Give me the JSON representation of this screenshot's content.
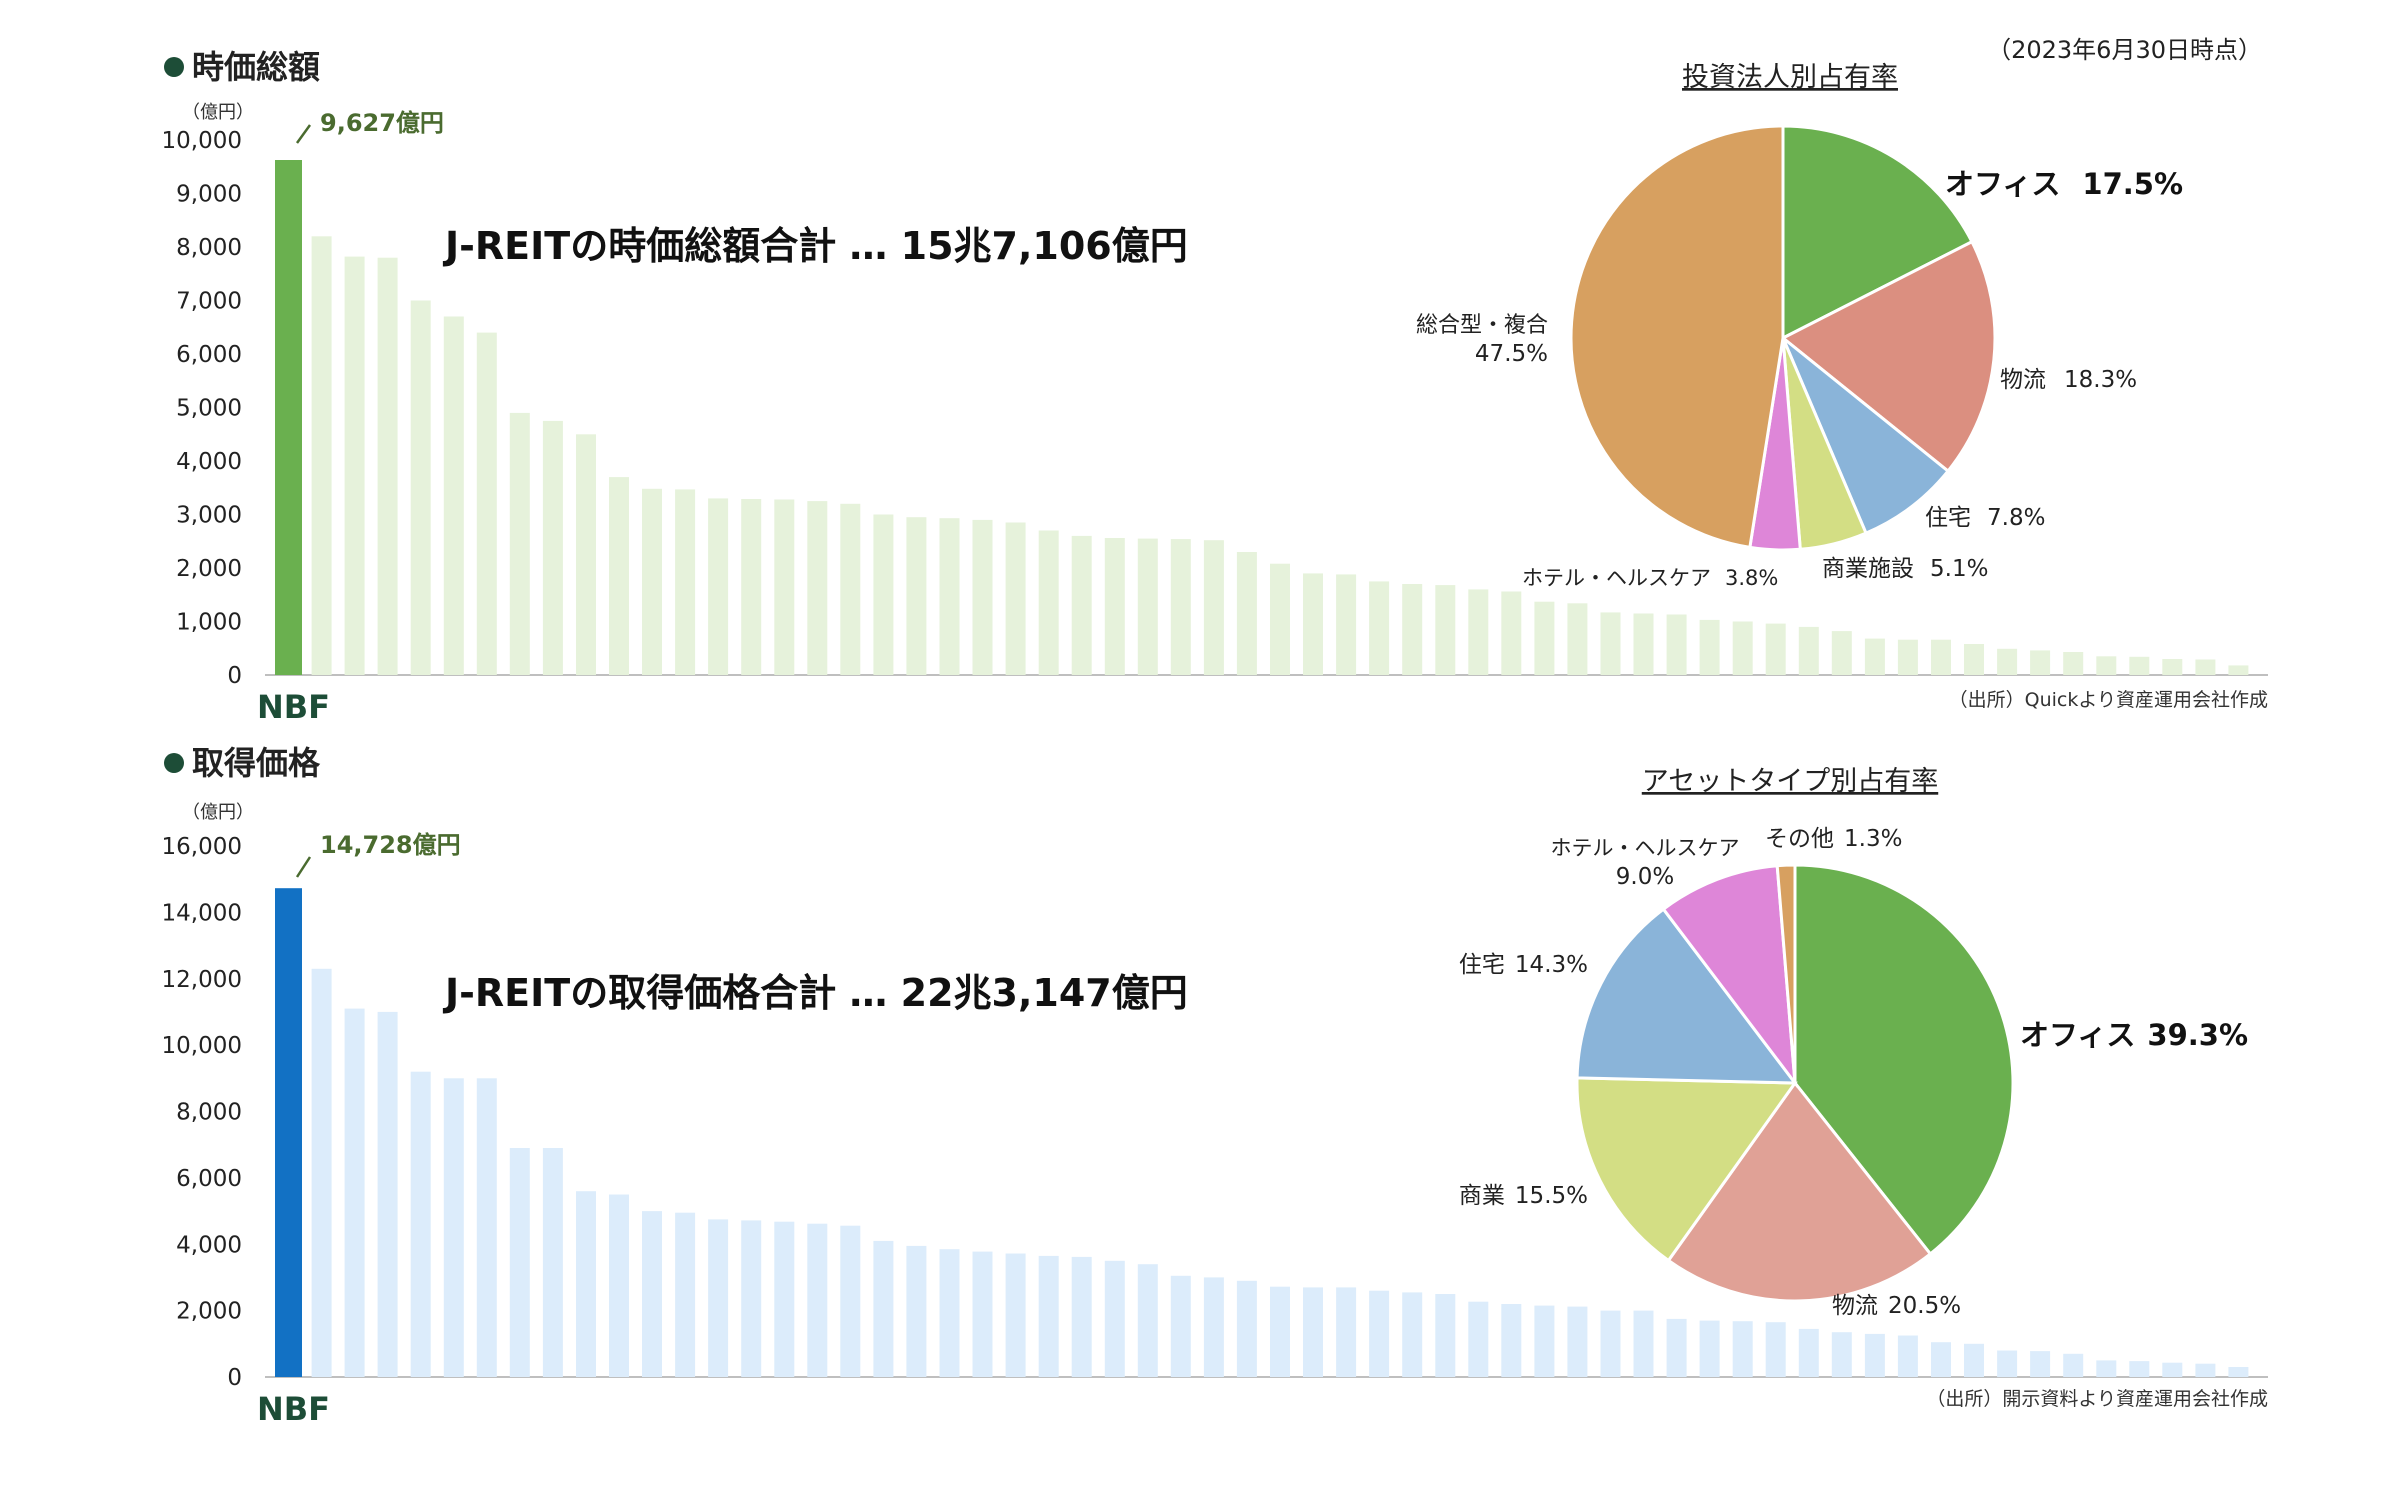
{
  "as_of": "（2023年6月30日時点）",
  "colors": {
    "section_dot": "#1d4d37",
    "label_green": "#4a6b2f",
    "nbf_bar_1": "#6ab04f",
    "other_bar_1": "#e6f2db",
    "nbf_bar_2": "#1271c4",
    "other_bar_2": "#dcecfb",
    "axis": "#bfbfbf"
  },
  "chart_data": [
    {
      "type": "bar",
      "title": "時価総額",
      "unit": "（億円）",
      "category_label": "NBF",
      "highlight_label": "9,627億円",
      "headline": "J-REITの時価総額合計 … 15兆7,106億円",
      "source": "（出所）Quickより資産運用会社作成",
      "ylim": [
        0,
        10000
      ],
      "yticks": [
        "0",
        "1,000",
        "2,000",
        "3,000",
        "4,000",
        "5,000",
        "6,000",
        "7,000",
        "8,000",
        "9,000",
        "10,000"
      ],
      "values": [
        9627,
        8200,
        7820,
        7800,
        7000,
        6700,
        6400,
        4900,
        4750,
        4500,
        3700,
        3480,
        3470,
        3300,
        3290,
        3280,
        3250,
        3200,
        3000,
        2950,
        2930,
        2900,
        2850,
        2700,
        2600,
        2560,
        2550,
        2540,
        2520,
        2300,
        2080,
        1900,
        1880,
        1750,
        1700,
        1680,
        1600,
        1560,
        1370,
        1340,
        1170,
        1150,
        1130,
        1030,
        1000,
        960,
        900,
        820,
        680,
        660,
        660,
        580,
        490,
        460,
        430,
        350,
        340,
        300,
        290,
        180
      ]
    },
    {
      "type": "pie",
      "title": "投資法人別占有率",
      "slices": [
        {
          "label": "オフィス",
          "pct_label": "17.5%",
          "value": 17.5,
          "color": "#6ab04f"
        },
        {
          "label": "物流",
          "pct_label": "18.3%",
          "value": 18.3,
          "color": "#db8f80"
        },
        {
          "label": "住宅",
          "pct_label": "7.8%",
          "value": 7.8,
          "color": "#8ab4d9"
        },
        {
          "label": "商業施設",
          "pct_label": "5.1%",
          "value": 5.1,
          "color": "#d3de84"
        },
        {
          "label": "ホテル・ヘルスケア",
          "pct_label": "3.8%",
          "value": 3.8,
          "color": "#de86d8"
        },
        {
          "label": "総合型・複合",
          "pct_label": "47.5%",
          "value": 47.5,
          "color": "#d7a060"
        }
      ]
    },
    {
      "type": "bar",
      "title": "取得価格",
      "unit": "（億円）",
      "category_label": "NBF",
      "highlight_label": "14,728億円",
      "headline": "J-REITの取得価格合計 … 22兆3,147億円",
      "source": "（出所）開示資料より資産運用会社作成",
      "ylim": [
        0,
        16000
      ],
      "yticks": [
        "0",
        "2,000",
        "4,000",
        "6,000",
        "8,000",
        "10,000",
        "12,000",
        "14,000",
        "16,000"
      ],
      "values": [
        14728,
        12300,
        11100,
        11000,
        9200,
        9000,
        9000,
        6900,
        6900,
        5600,
        5500,
        5000,
        4950,
        4750,
        4720,
        4680,
        4620,
        4560,
        4100,
        3950,
        3850,
        3780,
        3720,
        3650,
        3620,
        3500,
        3400,
        3050,
        3000,
        2900,
        2720,
        2700,
        2700,
        2600,
        2550,
        2500,
        2270,
        2200,
        2150,
        2120,
        2000,
        2000,
        1750,
        1700,
        1680,
        1650,
        1450,
        1350,
        1300,
        1250,
        1050,
        1000,
        800,
        780,
        700,
        500,
        480,
        430,
        400,
        300
      ]
    },
    {
      "type": "pie",
      "title": "アセットタイプ別占有率",
      "slices": [
        {
          "label": "オフィス",
          "pct_label": "39.3%",
          "value": 39.3,
          "color": "#6ab04f"
        },
        {
          "label": "物流",
          "pct_label": "20.5%",
          "value": 20.5,
          "color": "#e0a196"
        },
        {
          "label": "商業",
          "pct_label": "15.5%",
          "value": 15.5,
          "color": "#d3de84"
        },
        {
          "label": "住宅",
          "pct_label": "14.3%",
          "value": 14.3,
          "color": "#8ab4d9"
        },
        {
          "label": "ホテル・ヘルスケア",
          "pct_label": "9.0%",
          "value": 9.0,
          "color": "#de86d8"
        },
        {
          "label": "その他",
          "pct_label": "1.3%",
          "value": 1.3,
          "color": "#d7a060"
        }
      ]
    }
  ]
}
